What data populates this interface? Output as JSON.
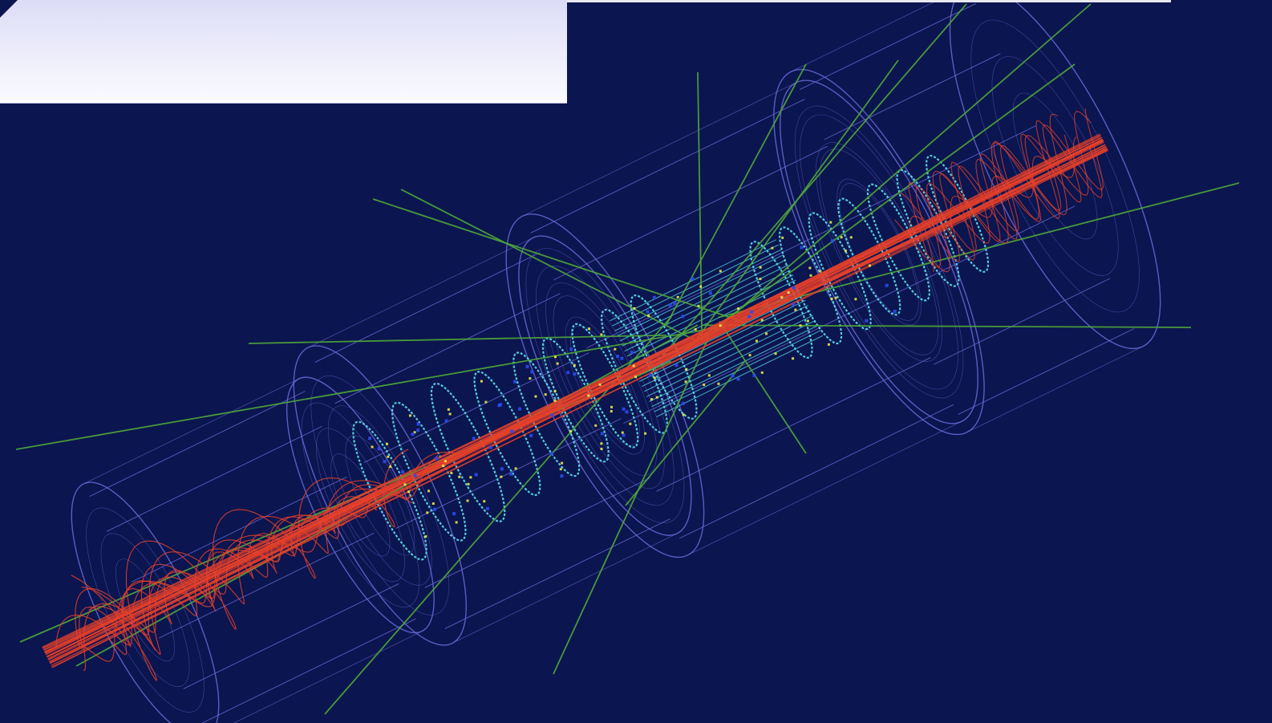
{
  "viewer": {
    "background_color": "#0b154f",
    "detector_color": "#6a6ad8",
    "tracker_disk_color": "#5ae0ea",
    "charged_track_color": "#e8402a",
    "neutral_track_color": "#4fa83a",
    "hit_color_yellow": "#e8e84a",
    "hit_color_blue": "#2a4af0"
  },
  "overlay_panel": {
    "fill": "#e8e8fa"
  }
}
